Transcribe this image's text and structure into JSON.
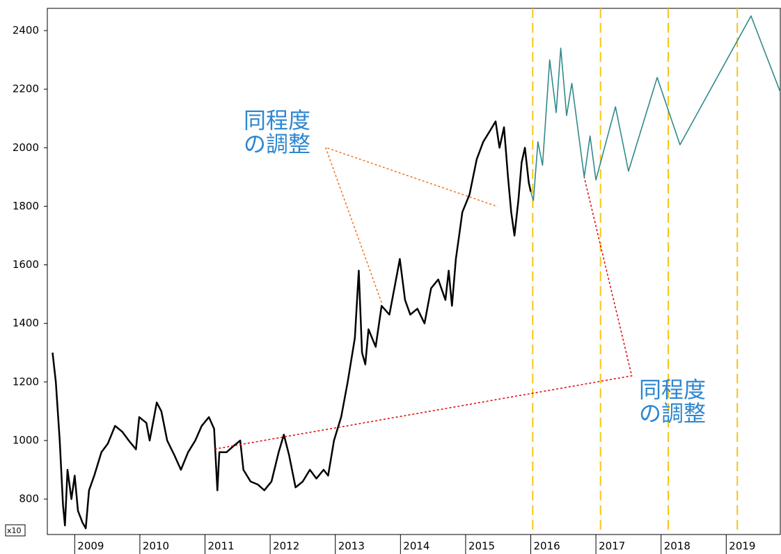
{
  "chart_data": {
    "type": "line",
    "axis_unit_label": "x10",
    "xlim": [
      2008.58,
      2019.83
    ],
    "ylim": [
      679,
      2476
    ],
    "xticks": [
      2009,
      2010,
      2011,
      2012,
      2013,
      2014,
      2015,
      2016,
      2017,
      2018,
      2019
    ],
    "yticks": [
      800,
      1000,
      1200,
      1400,
      1600,
      1800,
      2000,
      2200,
      2400
    ],
    "series": [
      {
        "color": "#000000",
        "x": [
          2008.66,
          2008.71,
          2008.77,
          2008.82,
          2008.85,
          2008.89,
          2008.95,
          2009.0,
          2009.05,
          2009.12,
          2009.17,
          2009.22,
          2009.3,
          2009.41,
          2009.51,
          2009.62,
          2009.73,
          2009.83,
          2009.94,
          2009.99,
          2010.1,
          2010.15,
          2010.26,
          2010.33,
          2010.42,
          2010.53,
          2010.63,
          2010.74,
          2010.85,
          2010.95,
          2011.06,
          2011.14,
          2011.19,
          2011.22,
          2011.33,
          2011.43,
          2011.54,
          2011.59,
          2011.7,
          2011.81,
          2011.91,
          2012.02,
          2012.13,
          2012.21,
          2012.29,
          2012.39,
          2012.5,
          2012.61,
          2012.71,
          2012.82,
          2012.89,
          2012.98,
          2013.09,
          2013.19,
          2013.3,
          2013.36,
          2013.41,
          2013.46,
          2013.51,
          2013.62,
          2013.71,
          2013.83,
          2013.94,
          2013.99,
          2014.07,
          2014.15,
          2014.26,
          2014.37,
          2014.47,
          2014.58,
          2014.69,
          2014.74,
          2014.79,
          2014.85,
          2014.9,
          2014.95,
          2015.06,
          2015.17,
          2015.27,
          2015.38,
          2015.46,
          2015.52,
          2015.59,
          2015.65,
          2015.7,
          2015.75,
          2015.81,
          2015.86,
          2015.91,
          2015.97,
          2016.0
        ],
        "values": [
          1300,
          1200,
          1000,
          780,
          710,
          900,
          800,
          880,
          760,
          720,
          700,
          830,
          880,
          960,
          990,
          1050,
          1030,
          1000,
          970,
          1080,
          1060,
          1000,
          1130,
          1100,
          1000,
          950,
          900,
          960,
          1000,
          1050,
          1080,
          1040,
          830,
          960,
          960,
          980,
          1000,
          900,
          860,
          850,
          830,
          860,
          960,
          1020,
          950,
          840,
          860,
          900,
          870,
          900,
          880,
          1000,
          1080,
          1200,
          1350,
          1580,
          1300,
          1260,
          1380,
          1320,
          1460,
          1430,
          1560,
          1620,
          1480,
          1430,
          1450,
          1400,
          1520,
          1550,
          1480,
          1580,
          1460,
          1620,
          1700,
          1780,
          1840,
          1960,
          2020,
          2060,
          2090,
          2000,
          2070,
          1900,
          1780,
          1700,
          1820,
          1950,
          2000,
          1880,
          1850
        ]
      },
      {
        "color": "#2f8a8a",
        "x": [
          2016.0,
          2016.04,
          2016.11,
          2016.18,
          2016.29,
          2016.39,
          2016.46,
          2016.55,
          2016.63,
          2016.82,
          2016.91,
          2017.0,
          2017.3,
          2017.5,
          2017.94,
          2018.29,
          2019.38,
          2019.83
        ],
        "values": [
          1850,
          1820,
          2020,
          1940,
          2300,
          2120,
          2340,
          2110,
          2220,
          1900,
          2040,
          1890,
          2140,
          1920,
          2240,
          2010,
          2450,
          2190
        ]
      }
    ],
    "vlines": {
      "color": "#f5c518",
      "x": [
        2016.03,
        2017.07,
        2018.11,
        2019.17
      ]
    },
    "annotation_lines": [
      {
        "color": "#f07020",
        "x": [
          2013.71,
          2012.85,
          2015.49
        ],
        "y": [
          1471,
          2001,
          1799
        ]
      },
      {
        "color": "#e00000",
        "x": [
          2011.15,
          2017.55,
          2016.82
        ],
        "y": [
          971,
          1221,
          1899
        ]
      }
    ],
    "annotations": [
      {
        "lines": [
          "同程度",
          "の調整"
        ]
      },
      {
        "lines": [
          "同程度",
          "の調整"
        ]
      }
    ]
  }
}
